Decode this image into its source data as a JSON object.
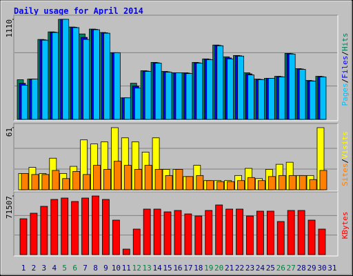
{
  "chart_data": [
    {
      "type": "bar",
      "title": "Daily usage for April 2014",
      "categories": [
        "1",
        "2",
        "3",
        "4",
        "5",
        "6",
        "7",
        "8",
        "9",
        "10",
        "11",
        "12",
        "13",
        "14",
        "15",
        "16",
        "17",
        "18",
        "19",
        "20",
        "21",
        "22",
        "23",
        "24",
        "25",
        "26",
        "27",
        "28",
        "29",
        "30",
        "31"
      ],
      "category_colors": [
        "#000080",
        "#000080",
        "#000080",
        "#000080",
        "#008040",
        "#008040",
        "#000080",
        "#000080",
        "#000080",
        "#000080",
        "#000080",
        "#008040",
        "#008040",
        "#000080",
        "#000080",
        "#000080",
        "#000080",
        "#000080",
        "#008040",
        "#008040",
        "#000080",
        "#000080",
        "#000080",
        "#000080",
        "#000080",
        "#008040",
        "#008040",
        "#000080",
        "#000080",
        "#000080",
        "#000080"
      ],
      "ylim": [
        0,
        1110
      ],
      "yticks": [
        1110
      ],
      "series": [
        {
          "name": "Hits",
          "color": "#00805c",
          "values": [
            440,
            447,
            887,
            971,
            1110,
            1025,
            948,
            1002,
            964,
            740,
            239,
            401,
            540,
            632,
            532,
            517,
            517,
            632,
            671,
            825,
            694,
            709,
            517,
            447,
            455,
            478,
            732,
            563,
            432,
            478,
            null
          ]
        },
        {
          "name": "Files",
          "color": "#0000ff",
          "values": [
            400,
            447,
            883,
            968,
            1110,
            1022,
            910,
            999,
            960,
            740,
            239,
            370,
            536,
            628,
            528,
            517,
            513,
            628,
            667,
            821,
            682,
            706,
            505,
            444,
            455,
            474,
            729,
            559,
            428,
            474,
            null
          ]
        },
        {
          "name": "Pages",
          "color": "#00c0ff",
          "values": [
            378,
            447,
            879,
            964,
            1110,
            1018,
            887,
            995,
            956,
            740,
            239,
            347,
            532,
            624,
            524,
            517,
            509,
            624,
            663,
            817,
            671,
            702,
            493,
            440,
            455,
            470,
            725,
            555,
            424,
            470,
            null
          ]
        }
      ]
    },
    {
      "type": "bar",
      "ylim": [
        0,
        61
      ],
      "yticks": [
        61
      ],
      "series": [
        {
          "name": "Visits",
          "color": "#ffff00",
          "values": [
            16,
            22,
            16,
            31,
            16,
            23,
            49,
            45,
            47,
            61,
            51,
            47,
            37,
            51,
            20,
            20,
            13,
            24,
            9,
            9,
            9,
            14,
            21,
            11,
            20,
            25,
            27,
            14,
            14,
            61,
            null
          ]
        },
        {
          "name": "Sites",
          "color": "#ff8000",
          "values": [
            16,
            15,
            15,
            19,
            11,
            18,
            15,
            24,
            20,
            28,
            24,
            20,
            24,
            20,
            14,
            20,
            13,
            14,
            9,
            8,
            8,
            9,
            12,
            9,
            13,
            14,
            14,
            14,
            10,
            19,
            null
          ]
        }
      ]
    },
    {
      "type": "bar",
      "ylim": [
        0,
        71507
      ],
      "yticks": [
        71507
      ],
      "series": [
        {
          "name": "KBytes",
          "color": "#ff0000",
          "values": [
            43748,
            50478,
            58891,
            67304,
            68987,
            64780,
            68987,
            71507,
            67304,
            42065,
            6730,
            31128,
            55526,
            55526,
            52161,
            53843,
            49637,
            47113,
            53843,
            60574,
            55526,
            55526,
            47113,
            53002,
            53002,
            40382,
            53843,
            53843,
            42065,
            31128,
            null
          ]
        }
      ]
    }
  ]
}
